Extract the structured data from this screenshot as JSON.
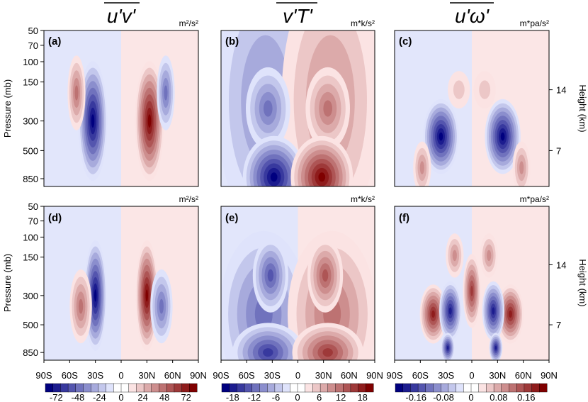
{
  "chart_data": {
    "type": "heatmap",
    "column_titles": [
      "u'v'",
      "v'T'",
      "u'ω'"
    ],
    "row_units": [
      [
        "m²/s²",
        "m*k/s²",
        "m*pa/s²"
      ],
      [
        "m²/s²",
        "m*k/s²",
        "m*pa/s²"
      ]
    ],
    "panel_labels": [
      "(a)",
      "(b)",
      "(c)",
      "(d)",
      "(e)",
      "(f)"
    ],
    "ylabel": "Pressure (mb)",
    "ylabel_right": "Height (km)",
    "pressure_ticks": [
      "50",
      "70",
      "100",
      "150",
      "300",
      "500",
      "850"
    ],
    "height_ticks": [
      "14",
      "7"
    ],
    "x_ticks": [
      "90S",
      "60S",
      "30S",
      "0",
      "30N",
      "60N",
      "90N"
    ],
    "colorbars": [
      {
        "ticks": [
          "-72",
          "-48",
          "-24",
          "0",
          "24",
          "48",
          "72"
        ],
        "range": [
          -84,
          84
        ]
      },
      {
        "ticks": [
          "-18",
          "-12",
          "-6",
          "0",
          "6",
          "12",
          "18"
        ],
        "range": [
          -21,
          21
        ]
      },
      {
        "ticks": [
          "-0.16",
          "-0.08",
          "0",
          "0.08",
          "0.16"
        ],
        "range": [
          -0.22,
          0.22
        ]
      }
    ],
    "colors": {
      "neg_dark": "#00007f",
      "neg_light": "#dfe3fb",
      "pos_light": "#fbe3e3",
      "pos_dark": "#7f0000",
      "white": "#ffffff"
    },
    "panels": [
      {
        "id": "a",
        "background": 0.06,
        "features": [
          {
            "lat": -33,
            "lev": 0.42,
            "dx": 6.5,
            "dy": 0.32,
            "amp": -0.98
          },
          {
            "lat": 33,
            "lev": 0.42,
            "dx": 6.5,
            "dy": 0.32,
            "amp": 0.98
          },
          {
            "lat": -52,
            "lev": 0.6,
            "dx": 4,
            "dy": 0.2,
            "amp": 0.5
          },
          {
            "lat": 52,
            "lev": 0.6,
            "dx": 4,
            "dy": 0.2,
            "amp": -0.5
          }
        ]
      },
      {
        "id": "b",
        "background": 0.08,
        "features": [
          {
            "lat": -38,
            "lev": 0.55,
            "dx": 22,
            "dy": 0.7,
            "amp": -0.48
          },
          {
            "lat": 38,
            "lev": 0.55,
            "dx": 22,
            "dy": 0.7,
            "amp": 0.48
          },
          {
            "lat": -35,
            "lev": 0.5,
            "dx": 10,
            "dy": 0.22,
            "amp": -0.55
          },
          {
            "lat": 35,
            "lev": 0.5,
            "dx": 10,
            "dy": 0.22,
            "amp": 0.6
          },
          {
            "lat": -28,
            "lev": 0.06,
            "dx": 14,
            "dy": 0.22,
            "amp": -0.95
          },
          {
            "lat": 28,
            "lev": 0.06,
            "dx": 14,
            "dy": 0.22,
            "amp": 0.95
          }
        ]
      },
      {
        "id": "c",
        "background": 0.06,
        "features": [
          {
            "lat": -36,
            "lev": 0.32,
            "dx": 8,
            "dy": 0.2,
            "amp": -0.95
          },
          {
            "lat": 36,
            "lev": 0.32,
            "dx": 8,
            "dy": 0.2,
            "amp": -0.95
          },
          {
            "lat": -58,
            "lev": 0.12,
            "dx": 4,
            "dy": 0.14,
            "amp": 0.45
          },
          {
            "lat": 58,
            "lev": 0.12,
            "dx": 4,
            "dy": 0.14,
            "amp": 0.45
          },
          {
            "lat": -15,
            "lev": 0.62,
            "dx": 5,
            "dy": 0.1,
            "amp": 0.25
          },
          {
            "lat": 15,
            "lev": 0.62,
            "dx": 5,
            "dy": 0.1,
            "amp": 0.25
          }
        ]
      },
      {
        "id": "d",
        "background": 0.05,
        "features": [
          {
            "lat": -30,
            "lev": 0.42,
            "dx": 5,
            "dy": 0.3,
            "amp": -0.95
          },
          {
            "lat": 30,
            "lev": 0.42,
            "dx": 5,
            "dy": 0.3,
            "amp": 0.95
          },
          {
            "lat": -47,
            "lev": 0.35,
            "dx": 5,
            "dy": 0.2,
            "amp": 0.6
          },
          {
            "lat": 47,
            "lev": 0.35,
            "dx": 5,
            "dy": 0.2,
            "amp": -0.6
          }
        ]
      },
      {
        "id": "e",
        "background": 0.08,
        "features": [
          {
            "lat": -40,
            "lev": 0.3,
            "dx": 20,
            "dy": 0.45,
            "amp": -0.55
          },
          {
            "lat": 40,
            "lev": 0.3,
            "dx": 20,
            "dy": 0.45,
            "amp": 0.55
          },
          {
            "lat": -32,
            "lev": 0.55,
            "dx": 8,
            "dy": 0.2,
            "amp": -0.7
          },
          {
            "lat": 32,
            "lev": 0.55,
            "dx": 8,
            "dy": 0.2,
            "amp": 0.7
          },
          {
            "lat": -35,
            "lev": 0.05,
            "dx": 16,
            "dy": 0.16,
            "amp": -0.75
          },
          {
            "lat": 35,
            "lev": 0.05,
            "dx": 16,
            "dy": 0.16,
            "amp": 0.75
          }
        ]
      },
      {
        "id": "f",
        "background": 0.05,
        "features": [
          {
            "lat": -45,
            "lev": 0.3,
            "dx": 6,
            "dy": 0.16,
            "amp": 0.9
          },
          {
            "lat": 45,
            "lev": 0.3,
            "dx": 6,
            "dy": 0.16,
            "amp": 0.9
          },
          {
            "lat": -25,
            "lev": 0.32,
            "dx": 5,
            "dy": 0.16,
            "amp": -0.9
          },
          {
            "lat": 25,
            "lev": 0.32,
            "dx": 5,
            "dy": 0.16,
            "amp": -0.9
          },
          {
            "lat": 0,
            "lev": 0.45,
            "dx": 4,
            "dy": 0.2,
            "amp": 0.75
          },
          {
            "lat": -28,
            "lev": 0.08,
            "dx": 3,
            "dy": 0.08,
            "amp": -0.9
          },
          {
            "lat": 28,
            "lev": 0.08,
            "dx": 3,
            "dy": 0.08,
            "amp": -0.9
          },
          {
            "lat": -20,
            "lev": 0.68,
            "dx": 4,
            "dy": 0.12,
            "amp": 0.45
          },
          {
            "lat": 20,
            "lev": 0.68,
            "dx": 4,
            "dy": 0.12,
            "amp": 0.45
          }
        ]
      }
    ]
  }
}
